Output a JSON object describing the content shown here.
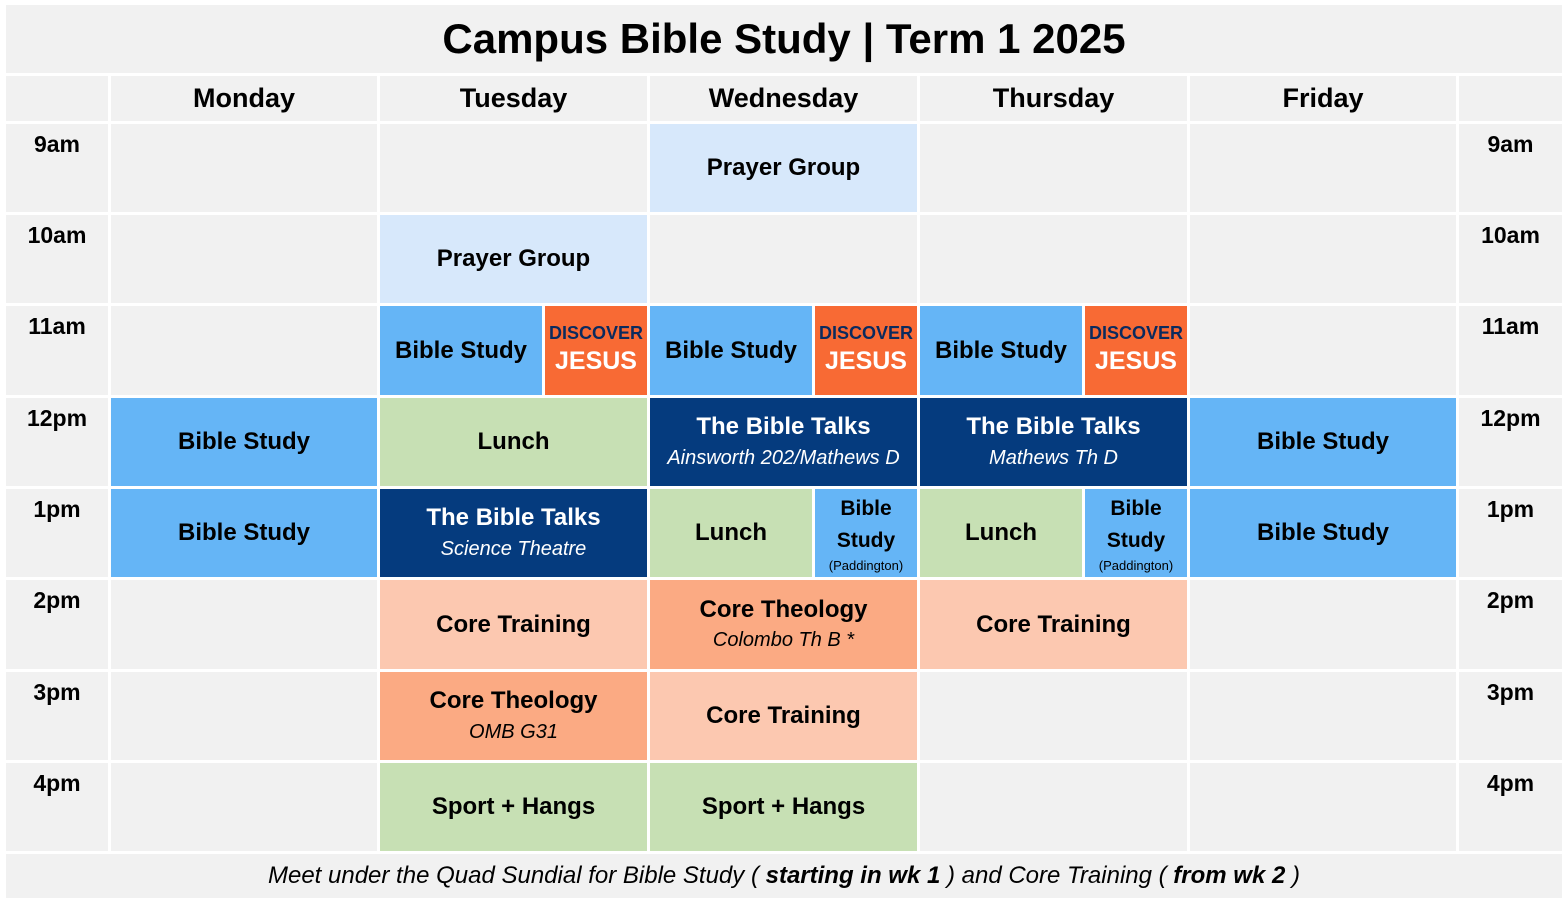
{
  "title": "Campus Bible Study | Term 1 2025",
  "days": [
    "Monday",
    "Tuesday",
    "Wednesday",
    "Thursday",
    "Friday"
  ],
  "times": [
    "9am",
    "10am",
    "11am",
    "12pm",
    "1pm",
    "2pm",
    "3pm",
    "4pm"
  ],
  "events": {
    "wed_9": "Prayer Group",
    "tue_10": "Prayer Group",
    "tue_11_study": "Bible Study",
    "wed_11_study": "Bible Study",
    "thu_11_study": "Bible Study",
    "discover_top": "DISCOVER",
    "discover_bottom": "JESUS",
    "mon_12": "Bible Study",
    "tue_12": "Lunch",
    "wed_12_title": "The Bible Talks",
    "wed_12_loc": "Ainsworth 202/Mathews D",
    "thu_12_title": "The Bible Talks",
    "thu_12_loc": "Mathews Th D",
    "fri_12": "Bible Study",
    "mon_1": "Bible Study",
    "tue_1_title": "The Bible Talks",
    "tue_1_loc": "Science Theatre",
    "wed_1_lunch": "Lunch",
    "thu_1_lunch": "Lunch",
    "bible_small_1": "Bible",
    "bible_small_2": "Study",
    "paddington": "(Paddington)",
    "fri_1": "Bible Study",
    "tue_2": "Core Training",
    "wed_2_title": "Core Theology",
    "wed_2_loc": "Colombo Th B *",
    "thu_2": "Core Training",
    "tue_3_title": "Core Theology",
    "tue_3_loc": "OMB G31",
    "wed_3": "Core Training",
    "tue_4": "Sport + Hangs",
    "wed_4": "Sport + Hangs"
  },
  "footer": {
    "part1": "Meet under the Quad Sundial for Bible Study ( ",
    "bold1": "starting in wk 1",
    "part2": " ) and Core Training ( ",
    "bold2": "from wk 2",
    "part3": " )"
  },
  "colors": {
    "light_blue": "#d7e8fb",
    "blue": "#65b5f6",
    "orange": "#f86a34",
    "navy": "#053b7e",
    "green": "#c7e0b4",
    "peach": "#fcc8b0",
    "salmon": "#fbaa83",
    "background": "#f1f1f1"
  }
}
